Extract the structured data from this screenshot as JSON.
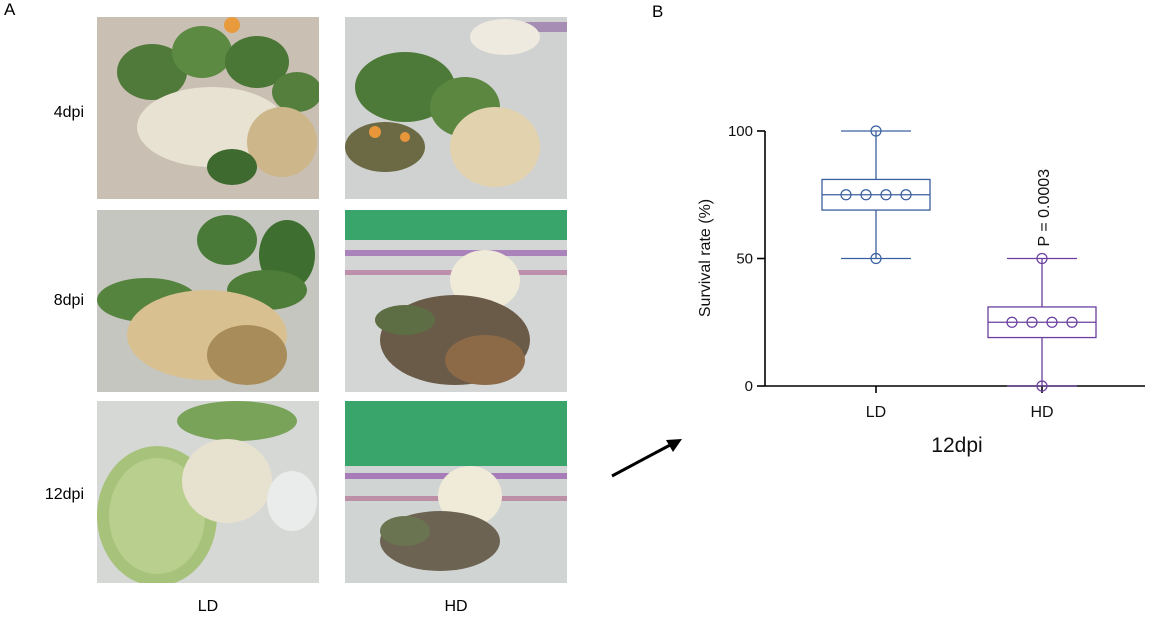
{
  "figure": {
    "panel_a_label": "A",
    "panel_b_label": "B"
  },
  "panel_a": {
    "row_labels": [
      "4dpi",
      "8dpi",
      "12dpi"
    ],
    "col_labels": [
      "LD",
      "HD"
    ]
  },
  "chart_data": {
    "type": "box",
    "title": "",
    "xlabel": "12dpi",
    "ylabel": "Survival rate (%)",
    "ylim": [
      0,
      100
    ],
    "yticks": [
      0,
      50,
      100
    ],
    "categories": [
      "LD",
      "HD"
    ],
    "series": [
      {
        "category": "LD",
        "color": "#3a5f9f",
        "min": 50,
        "q1": 69,
        "median": 75,
        "q3": 81,
        "max": 100,
        "points": [
          50,
          75,
          75,
          75,
          75,
          100
        ]
      },
      {
        "category": "HD",
        "color": "#6a3f9f",
        "min": 0,
        "q1": 19,
        "median": 25,
        "q3": 31,
        "max": 50,
        "points": [
          0,
          25,
          25,
          25,
          25,
          50
        ]
      }
    ],
    "annotation": "P = 0.0003"
  },
  "colors": {
    "ld_box": "#3a5f9f",
    "hd_box": "#6a3f9f",
    "axis": "#000000"
  }
}
